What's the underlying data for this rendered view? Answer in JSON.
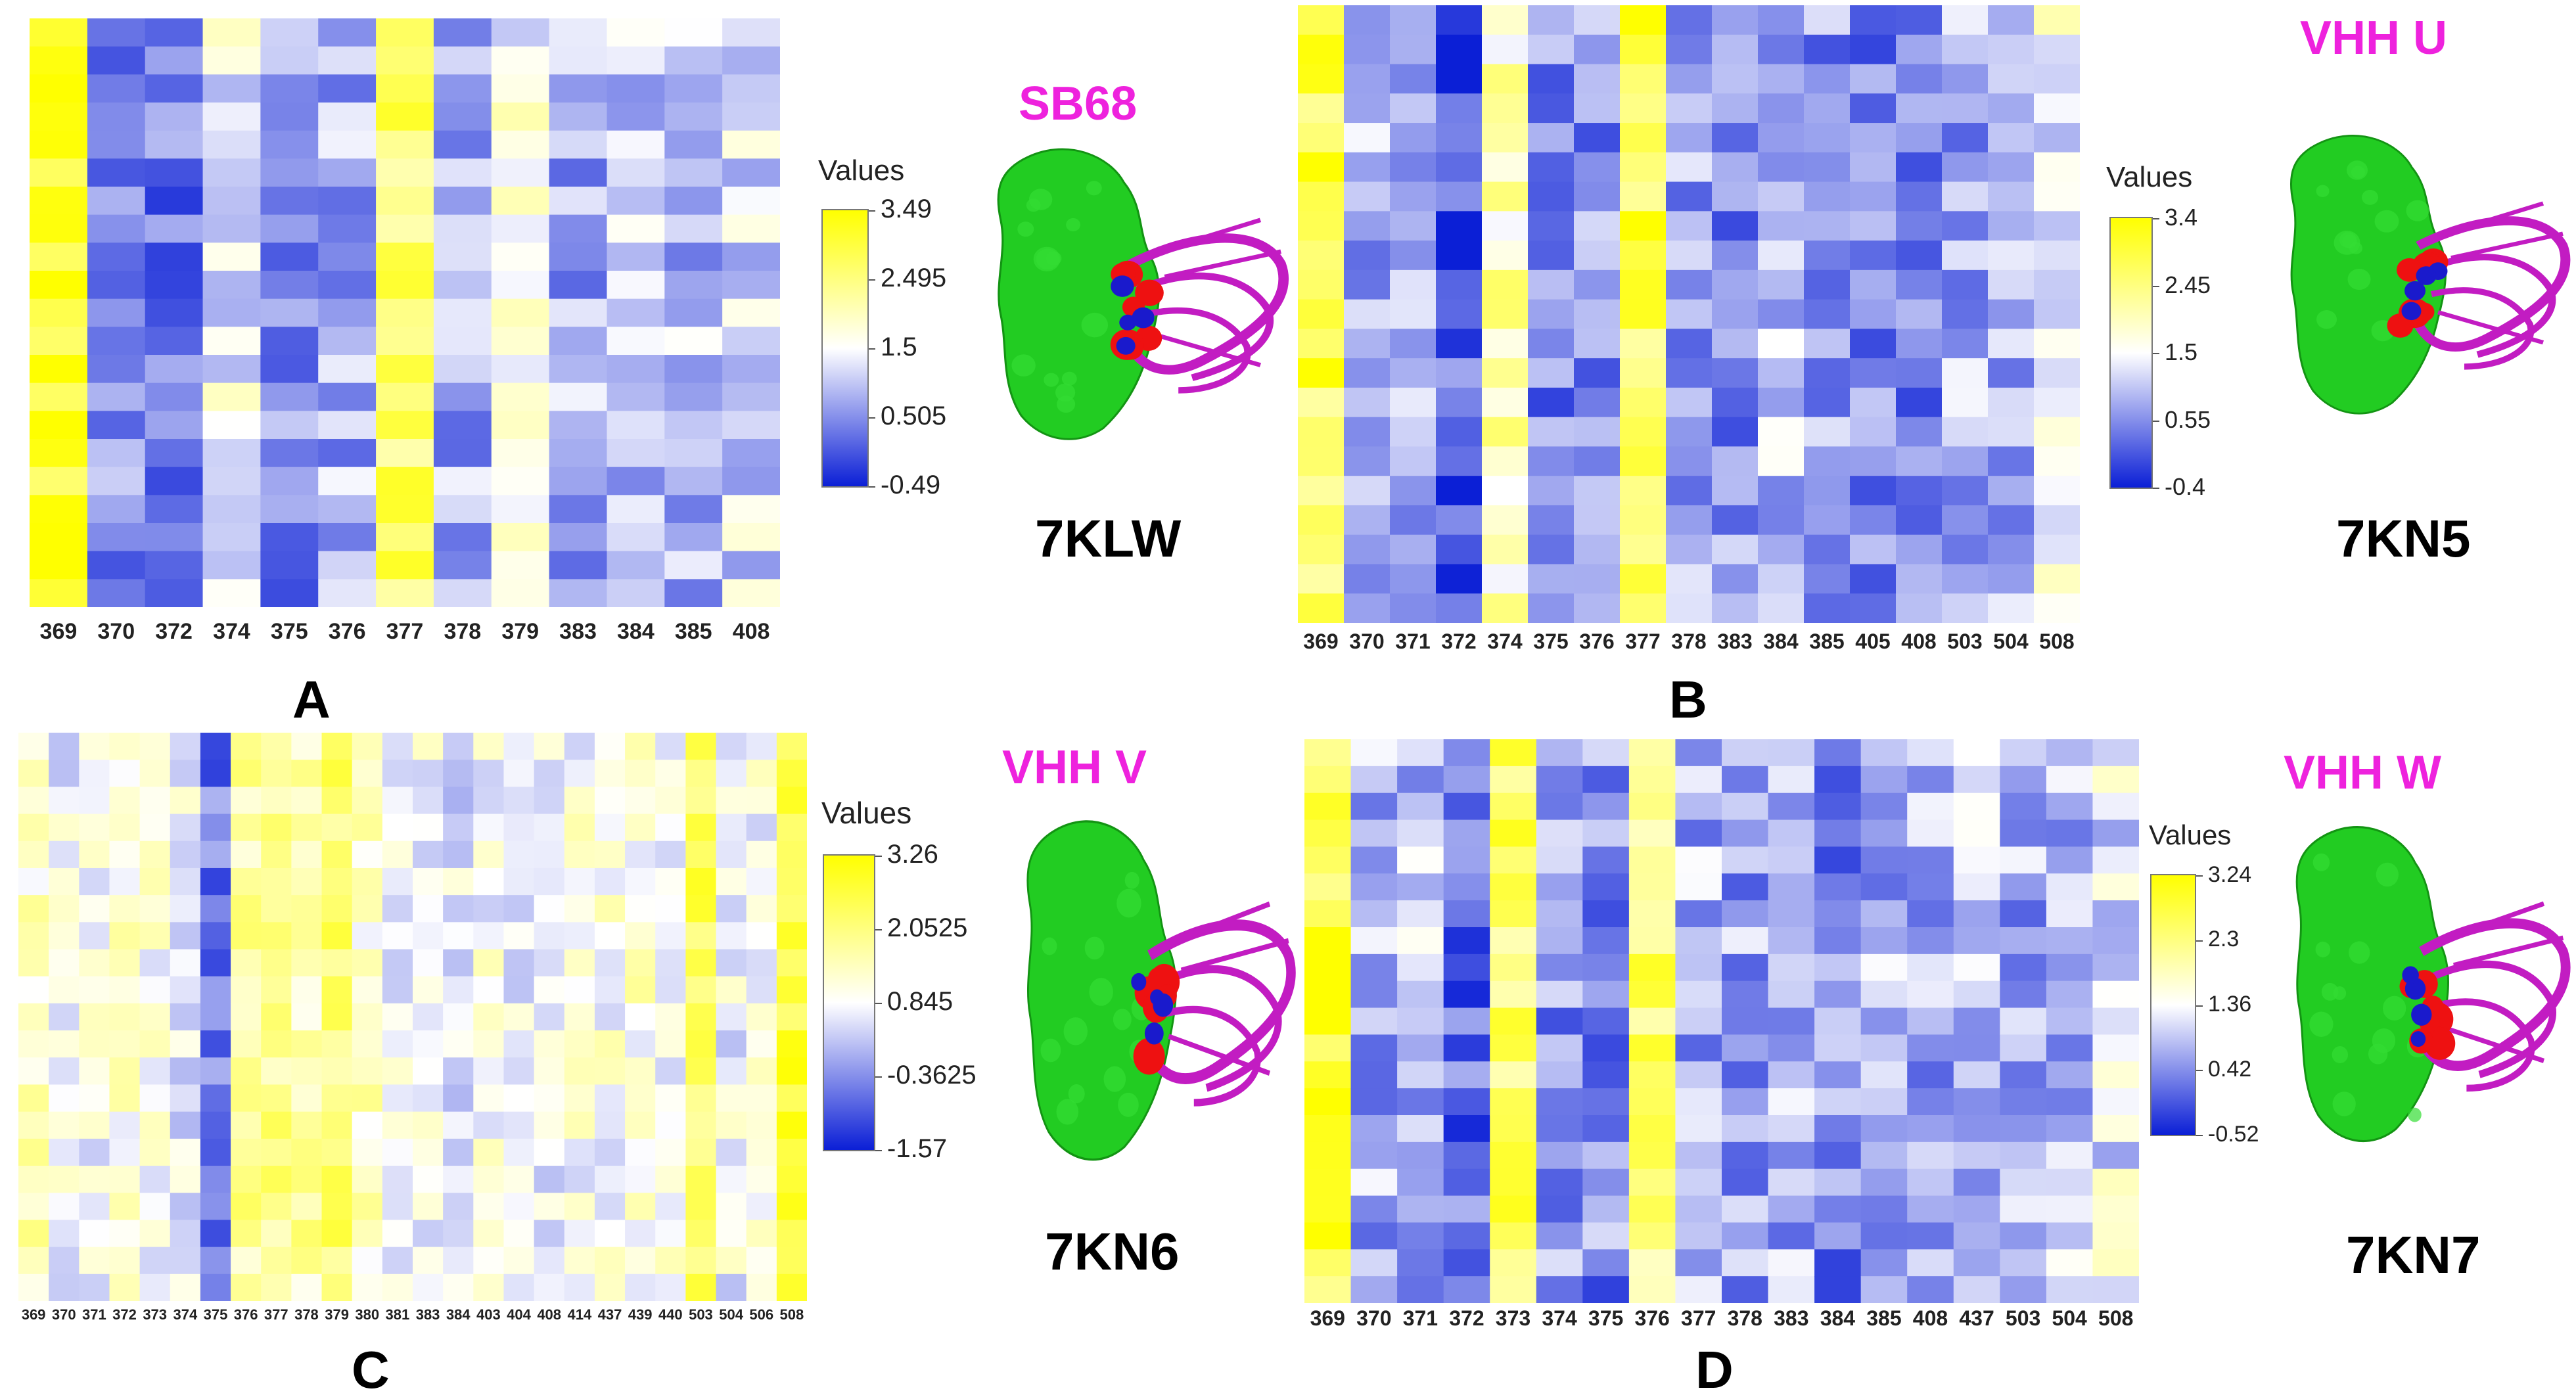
{
  "colors": {
    "low": "#0b1fd6",
    "mid": "#ffffff",
    "high": "#ffff00",
    "title": "#ee22dd",
    "surface": "#22cc22",
    "contact_red": "#ee1111",
    "contact_blue": "#1a1acc",
    "ribbon": "#c21cc2"
  },
  "chart_data": [
    {
      "type": "heatmap",
      "panel": "A",
      "title": "SB68",
      "pdb": "7KLW",
      "legend_title": "Values",
      "x": [
        "369",
        "370",
        "372",
        "374",
        "375",
        "376",
        "377",
        "378",
        "379",
        "383",
        "384",
        "385",
        "408"
      ],
      "rows": 21,
      "vmin": -0.49,
      "vmax": 3.49,
      "colorbar_ticks": [
        "3.49",
        "2.495",
        "1.5",
        "0.505",
        "-0.49"
      ],
      "column_levels": [
        3.2,
        0.6,
        0.3,
        1.4,
        0.5,
        0.8,
        2.6,
        0.8,
        1.6,
        0.8,
        1.0,
        0.9,
        1.2
      ],
      "column_labels": [
        "369",
        "370",
        "372",
        "374",
        "375",
        "376",
        "377",
        "378",
        "379",
        "383",
        "384",
        "385",
        "408"
      ]
    },
    {
      "type": "heatmap",
      "panel": "B",
      "title": "VHH U",
      "pdb": "7KN5",
      "legend_title": "Values",
      "x": [
        "369",
        "370",
        "371",
        "372",
        "374",
        "375",
        "376",
        "377",
        "378",
        "383",
        "384",
        "385",
        "405",
        "408",
        "503",
        "504",
        "508"
      ],
      "rows": 21,
      "vmin": -0.4,
      "vmax": 3.4,
      "colorbar_ticks": [
        "3.4",
        "2.45",
        "1.5",
        "0.55",
        "-0.4"
      ],
      "column_levels": [
        2.8,
        0.8,
        1.0,
        0.1,
        2.0,
        0.5,
        0.6,
        2.8,
        0.8,
        0.6,
        0.9,
        0.6,
        0.5,
        0.5,
        0.8,
        0.9,
        1.5
      ],
      "column_labels": [
        "369",
        "370",
        "371",
        "372",
        "374",
        "375",
        "376",
        "377",
        "378",
        "383",
        "384",
        "385",
        "405",
        "408",
        "503",
        "504",
        "508"
      ]
    },
    {
      "type": "heatmap",
      "panel": "C",
      "title": "VHH V",
      "pdb": "7KN6",
      "legend_title": "Values",
      "x": [
        "369",
        "370",
        "371",
        "372",
        "373",
        "374",
        "375",
        "376",
        "377",
        "378",
        "379",
        "380",
        "381",
        "383",
        "384",
        "403",
        "404",
        "408",
        "414",
        "437",
        "439",
        "440",
        "503",
        "504",
        "506",
        "508"
      ],
      "rows": 21,
      "vmin": -1.57,
      "vmax": 3.26,
      "colorbar_ticks": [
        "3.26",
        "2.0525",
        "0.845",
        "-0.3625",
        "-1.57"
      ],
      "column_levels": [
        1.4,
        0.8,
        0.9,
        1.2,
        1.0,
        0.7,
        -0.6,
        1.8,
        2.0,
        1.6,
        2.2,
        1.3,
        0.7,
        0.9,
        0.6,
        0.9,
        0.6,
        0.8,
        1.0,
        1.0,
        1.2,
        1.0,
        2.4,
        0.8,
        0.9,
        2.6
      ],
      "column_labels": [
        "369",
        "370",
        "371",
        "372",
        "373",
        "374",
        "375",
        "376",
        "377",
        "378",
        "379",
        "380",
        "381",
        "383",
        "384",
        "403",
        "404",
        "408",
        "414",
        "437",
        "439",
        "440",
        "503",
        "504",
        "506",
        "508"
      ]
    },
    {
      "type": "heatmap",
      "panel": "D",
      "title": "VHH W",
      "pdb": "7KN7",
      "legend_title": "Values",
      "x": [
        "369",
        "370",
        "371",
        "372",
        "373",
        "374",
        "375",
        "376",
        "377",
        "378",
        "383",
        "384",
        "385",
        "408",
        "437",
        "503",
        "504",
        "508"
      ],
      "rows": 21,
      "vmin": -0.52,
      "vmax": 3.24,
      "colorbar_ticks": [
        "3.24",
        "2.3",
        "1.36",
        "0.42",
        "-0.52"
      ],
      "column_levels": [
        2.8,
        0.7,
        0.8,
        0.2,
        2.4,
        0.5,
        0.4,
        2.4,
        0.7,
        0.6,
        0.7,
        0.4,
        0.7,
        0.7,
        0.8,
        0.7,
        0.8,
        1.2
      ],
      "column_labels": [
        "369",
        "370",
        "371",
        "372",
        "373",
        "374",
        "375",
        "376",
        "377",
        "378",
        "383",
        "384",
        "385",
        "408",
        "437",
        "503",
        "504",
        "508"
      ]
    }
  ]
}
